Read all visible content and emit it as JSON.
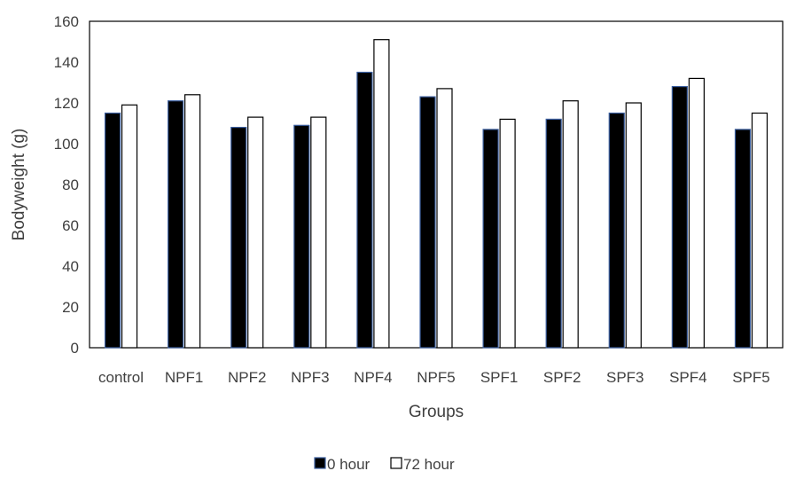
{
  "chart_data": {
    "type": "bar",
    "title": "",
    "xlabel": "Groups",
    "ylabel": "Bodyweight (g)",
    "ylim": [
      0,
      160
    ],
    "yticks": [
      0,
      20,
      40,
      60,
      80,
      100,
      120,
      140,
      160
    ],
    "categories": [
      "control",
      "NPF1",
      "NPF2",
      "NPF3",
      "NPF4",
      "NPF5",
      "SPF1",
      "SPF2",
      "SPF3",
      "SPF4",
      "SPF5"
    ],
    "series": [
      {
        "name": "0 hour",
        "color": "#000000",
        "values": [
          115,
          121,
          108,
          109,
          135,
          123,
          107,
          112,
          115,
          128,
          107
        ]
      },
      {
        "name": "72 hour",
        "color": "#ffffff",
        "values": [
          119,
          124,
          113,
          113,
          151,
          127,
          112,
          121,
          120,
          132,
          115
        ]
      }
    ],
    "legend_position": "bottom",
    "grid": false
  }
}
